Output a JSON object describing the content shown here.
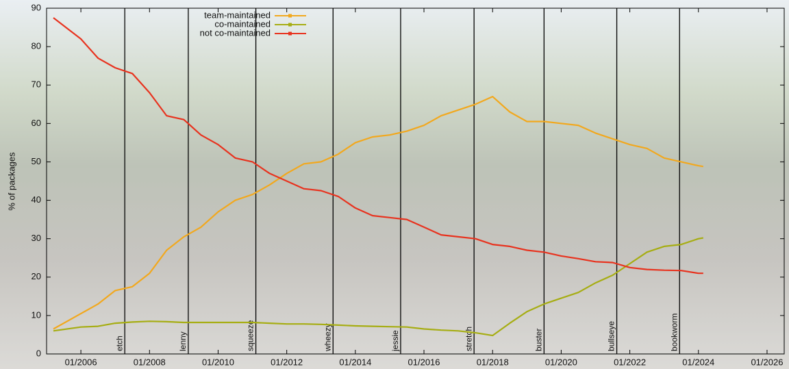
{
  "chart_data": {
    "type": "line",
    "ylabel": "% of packages",
    "x": [
      2005.2,
      2006,
      2006.5,
      2007,
      2007.5,
      2008,
      2008.5,
      2009,
      2009.5,
      2010,
      2010.5,
      2011,
      2011.5,
      2012,
      2012.5,
      2013,
      2013.5,
      2014,
      2014.5,
      2015,
      2015.5,
      2016,
      2016.5,
      2017,
      2017.5,
      2018,
      2018.5,
      2019,
      2019.5,
      2020,
      2020.5,
      2021,
      2021.5,
      2022,
      2022.5,
      2023,
      2023.5,
      2024,
      2024.14
    ],
    "series": [
      {
        "name": "team-maintained",
        "color": "#f2a81d",
        "values": [
          6.5,
          10.5,
          13,
          16.5,
          17.5,
          21,
          27,
          30.5,
          33,
          37,
          40,
          41.5,
          44,
          47,
          49.5,
          50,
          52,
          55,
          56.5,
          57,
          58,
          59.5,
          62,
          63.5,
          65,
          67,
          63,
          60.5,
          60.5,
          60,
          59.5,
          57.5,
          56,
          54.5,
          53.5,
          51,
          50,
          49,
          48.8
        ]
      },
      {
        "name": "co-maintained",
        "color": "#a6ad12",
        "values": [
          6,
          7,
          7.2,
          8,
          8.3,
          8.5,
          8.4,
          8.2,
          8.2,
          8.2,
          8.2,
          8.2,
          8,
          7.8,
          7.8,
          7.7,
          7.5,
          7.3,
          7.2,
          7.1,
          7,
          6.5,
          6.2,
          6,
          5.5,
          4.8,
          8,
          11,
          13,
          14.5,
          16,
          18.5,
          20.5,
          23.5,
          26.5,
          28,
          28.5,
          30,
          30.2
        ]
      },
      {
        "name": "not co-maintained",
        "color": "#e8321e",
        "values": [
          87.5,
          82,
          77,
          74.5,
          73,
          68,
          62,
          61,
          57,
          54.5,
          51,
          50,
          47,
          45,
          43,
          42.5,
          41,
          38,
          36,
          35.5,
          35,
          33,
          31,
          30.5,
          30,
          28.5,
          28,
          27,
          26.5,
          25.5,
          24.8,
          24,
          23.8,
          22.5,
          22,
          21.8,
          21.7,
          21,
          21
        ]
      }
    ],
    "releases": [
      {
        "name": "etch",
        "x": 2007.28
      },
      {
        "name": "lenny",
        "x": 2009.13
      },
      {
        "name": "squeeze",
        "x": 2011.1
      },
      {
        "name": "wheezy",
        "x": 2013.35
      },
      {
        "name": "jessie",
        "x": 2015.32
      },
      {
        "name": "stretch",
        "x": 2017.46
      },
      {
        "name": "buster",
        "x": 2019.5
      },
      {
        "name": "bullseye",
        "x": 2021.62
      },
      {
        "name": "bookworm",
        "x": 2023.45
      }
    ],
    "xlim": [
      2005,
      2026.5
    ],
    "xticks": [
      {
        "value": 2006,
        "label": "01/2006"
      },
      {
        "value": 2008,
        "label": "01/2008"
      },
      {
        "value": 2010,
        "label": "01/2010"
      },
      {
        "value": 2012,
        "label": "01/2012"
      },
      {
        "value": 2014,
        "label": "01/2014"
      },
      {
        "value": 2016,
        "label": "01/2016"
      },
      {
        "value": 2018,
        "label": "01/2018"
      },
      {
        "value": 2020,
        "label": "01/2020"
      },
      {
        "value": 2022,
        "label": "01/2022"
      },
      {
        "value": 2024,
        "label": "01/2024"
      },
      {
        "value": 2026,
        "label": "01/2026"
      }
    ],
    "ylim": [
      0,
      90
    ],
    "yticks": [
      0,
      10,
      20,
      30,
      40,
      50,
      60,
      70,
      80,
      90
    ],
    "legend": "top"
  }
}
